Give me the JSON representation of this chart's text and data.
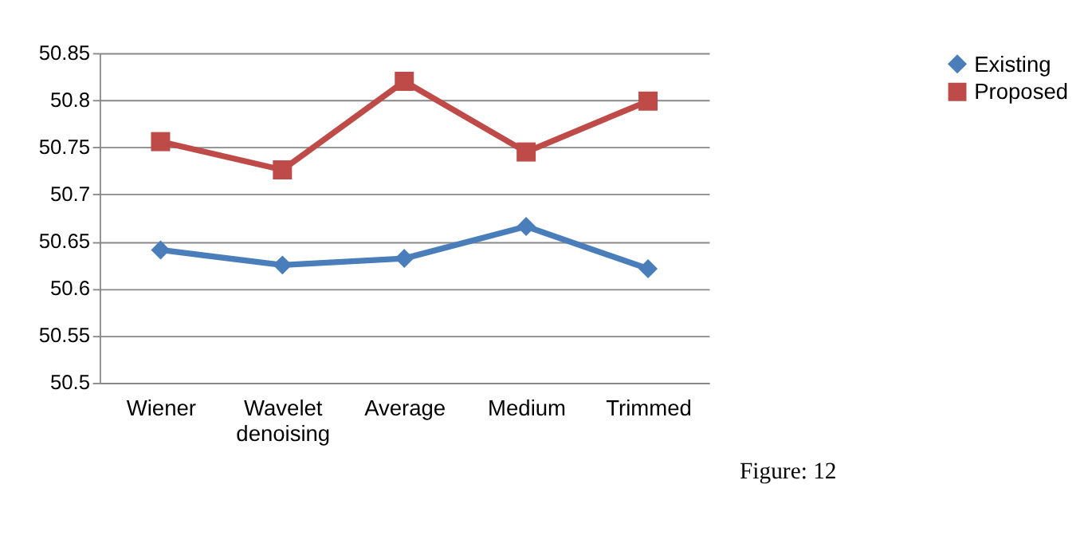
{
  "chart_data": {
    "type": "line",
    "categories": [
      "Wiener",
      "Wavelet denoising",
      "Average",
      "Medium",
      "Trimmed"
    ],
    "series": [
      {
        "name": "Existing",
        "color": "#4a7ebb",
        "marker": "diamond",
        "values": [
          50.641,
          50.625,
          50.632,
          50.666,
          50.621
        ]
      },
      {
        "name": "Proposed",
        "color": "#be4b48",
        "marker": "square",
        "values": [
          50.756,
          50.726,
          50.82,
          50.745,
          50.799
        ]
      }
    ],
    "ylim": [
      50.5,
      50.85
    ],
    "yticks": [
      50.5,
      50.55,
      50.6,
      50.65,
      50.7,
      50.75,
      50.8,
      50.85
    ],
    "grid": "y",
    "legend": "right",
    "line_style": "solid",
    "annotations": [
      "Figure: 12"
    ]
  }
}
